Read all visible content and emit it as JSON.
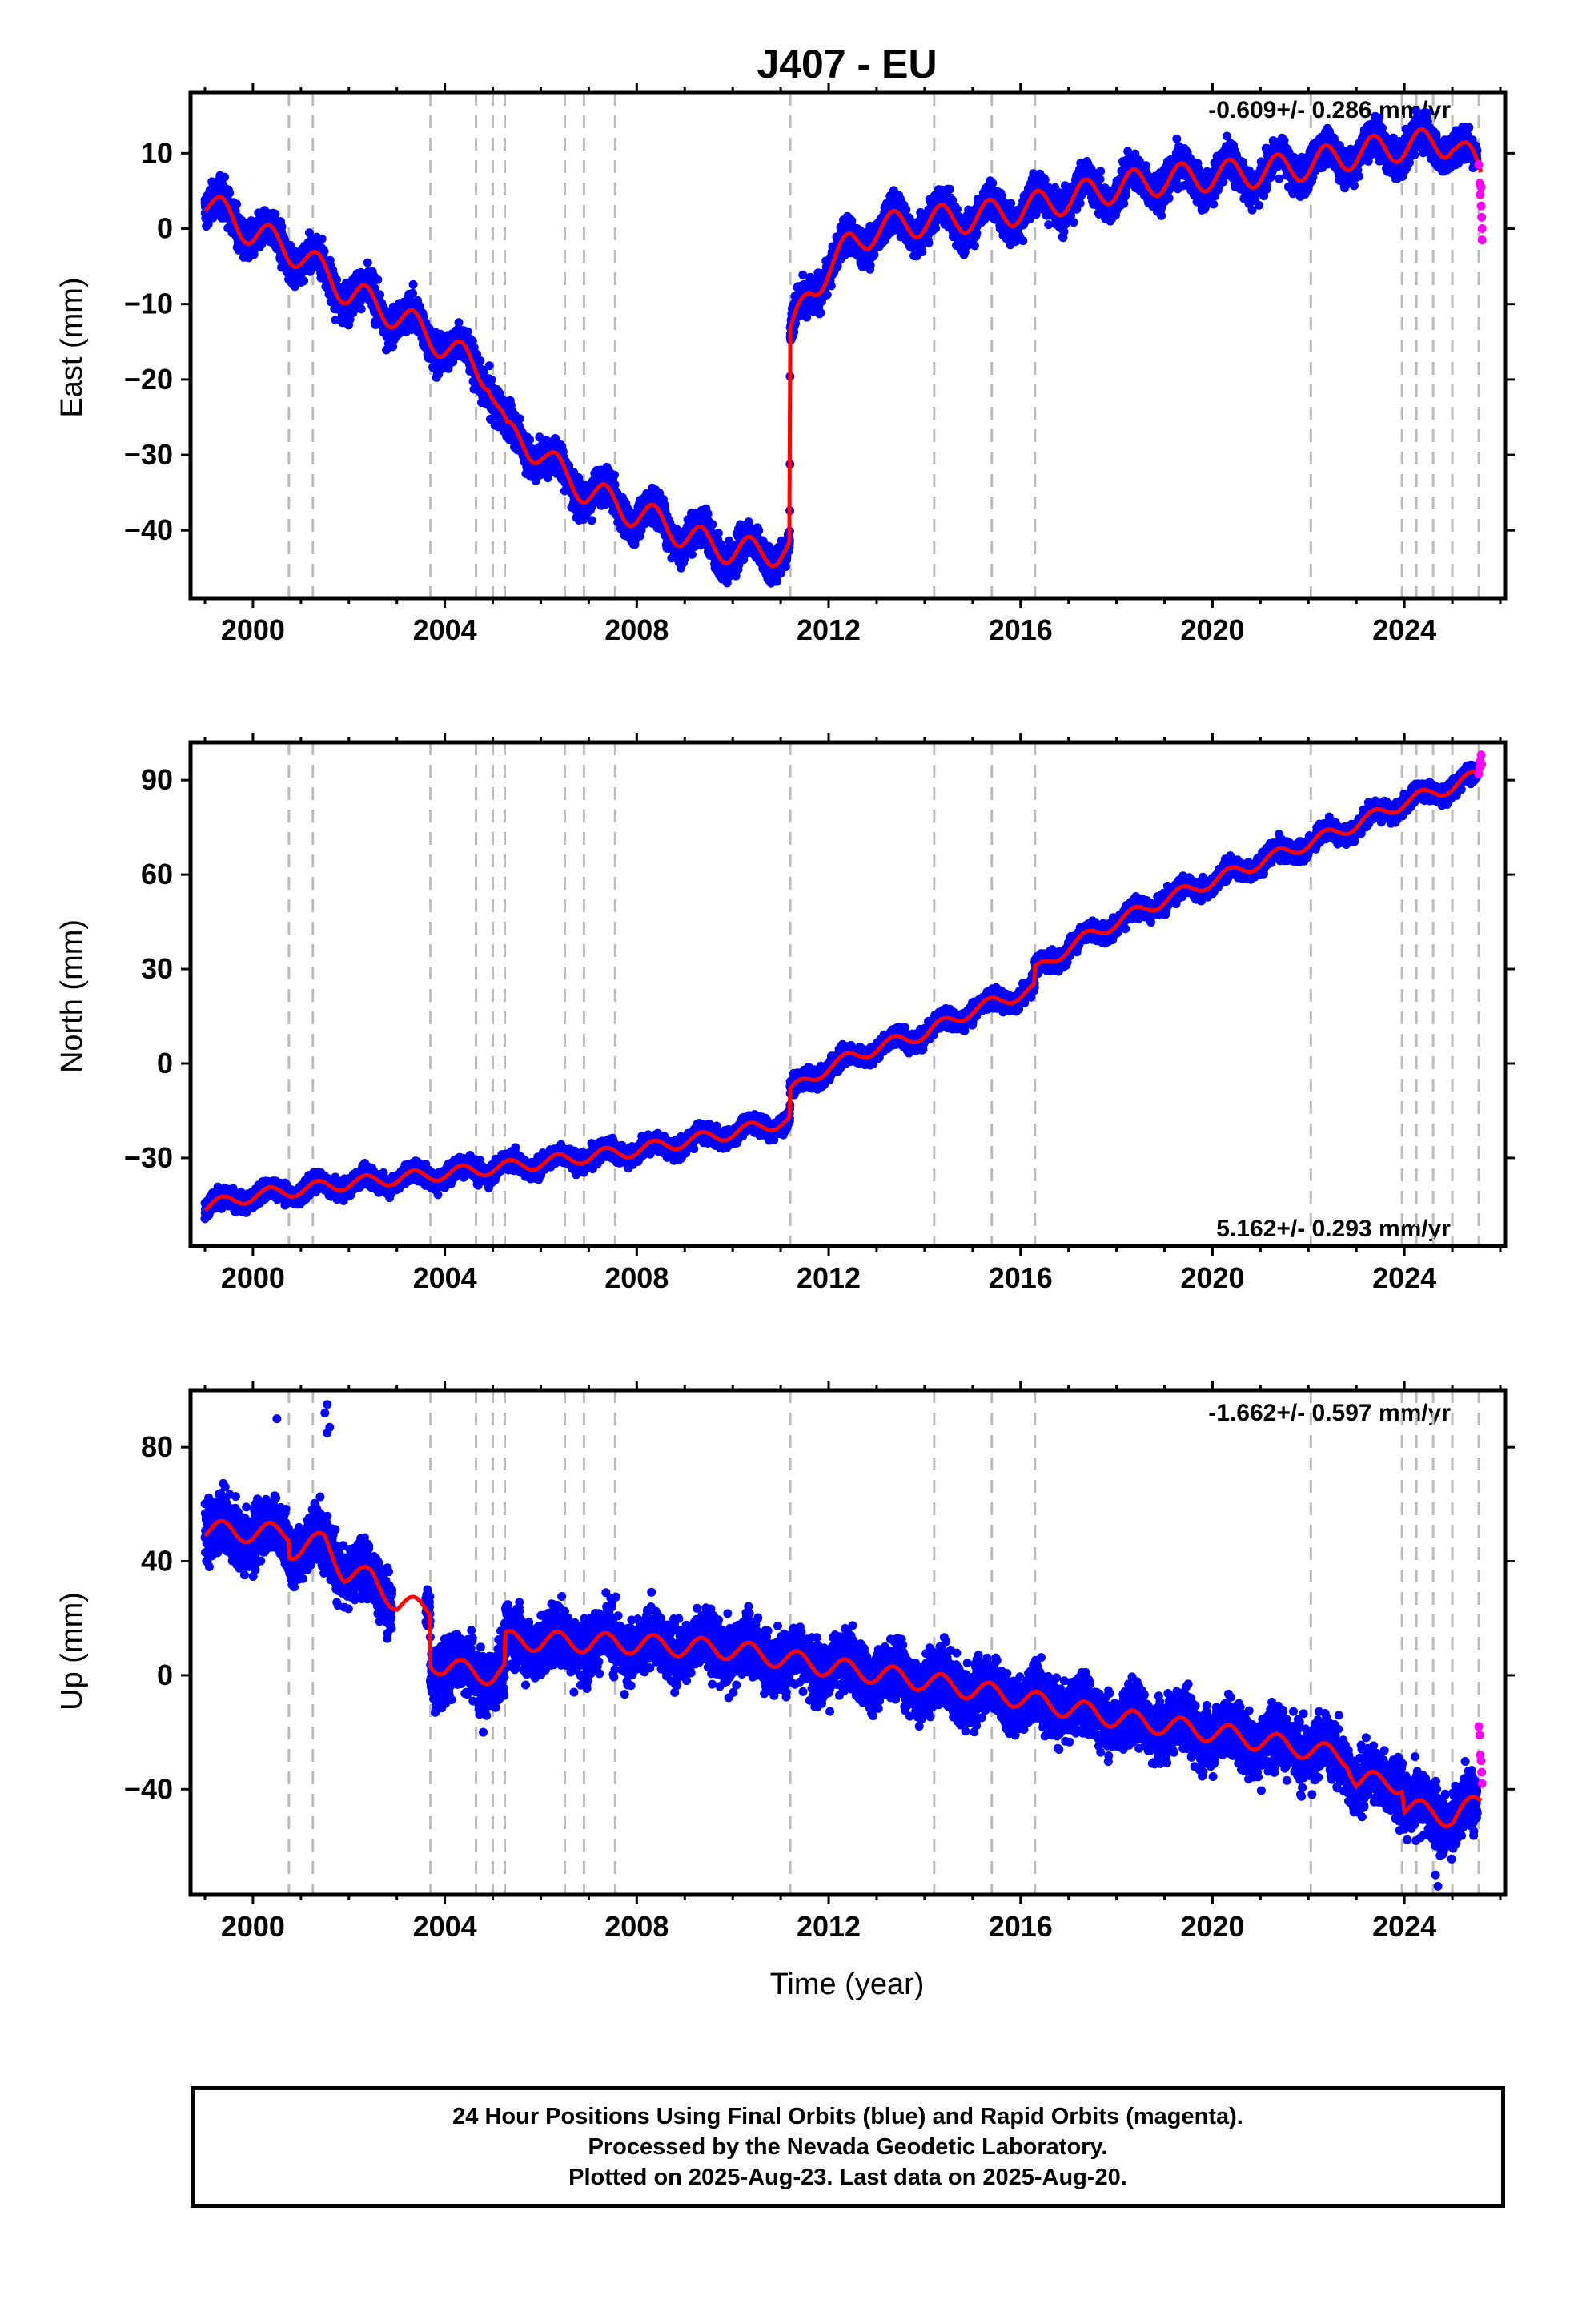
{
  "title": "J407 - EU",
  "xlabel": "Time (year)",
  "footer": {
    "line1": "24 Hour Positions Using Final Orbits (blue) and Rapid Orbits (magenta).",
    "line2": "Processed by the Nevada Geodetic Laboratory.",
    "line3": "Plotted on 2025-Aug-23. Last data on 2025-Aug-20."
  },
  "colors": {
    "final": "#0000ff",
    "rapid": "#ff00ff",
    "model": "#ff0000",
    "event": "#bbbbbb"
  },
  "chart_data": [
    {
      "type": "scatter",
      "component": "east",
      "ylabel": "East (mm)",
      "rate_text": "-0.609+/- 0.286 mm/yr",
      "rate_position": "top-right",
      "xlim": [
        1998.7,
        2026.1
      ],
      "ylim": [
        -49,
        18
      ],
      "x_ticks": [
        2000,
        2004,
        2008,
        2012,
        2016,
        2020,
        2024
      ],
      "y_ticks": [
        10,
        0,
        -10,
        -20,
        -30,
        -40
      ],
      "event_lines": [
        2000.75,
        2001.25,
        2003.7,
        2004.65,
        2005.0,
        2005.25,
        2006.5,
        2006.9,
        2007.55,
        2011.2,
        2014.2,
        2015.4,
        2016.3,
        2022.05,
        2023.95,
        2024.25,
        2024.6,
        2025.0,
        2025.55
      ],
      "model_trend": [
        [
          1999.0,
          3.5
        ],
        [
          2000.0,
          -0.5
        ],
        [
          2001.0,
          -3.5
        ],
        [
          2002.0,
          -8.5
        ],
        [
          2003.0,
          -11.5
        ],
        [
          2004.0,
          -15.5
        ],
        [
          2004.9,
          -19.5
        ],
        [
          2005.3,
          -27.5
        ],
        [
          2006.0,
          -29.5
        ],
        [
          2006.5,
          -33.0
        ],
        [
          2007.5,
          -36.5
        ],
        [
          2008.5,
          -39.0
        ],
        [
          2009.5,
          -42.0
        ],
        [
          2010.5,
          -43.0
        ],
        [
          2011.19,
          -42.5
        ],
        [
          2011.2,
          -14.5
        ],
        [
          2011.6,
          -8.5
        ],
        [
          2012.0,
          -5.0
        ],
        [
          2012.5,
          -2.0
        ],
        [
          2013.0,
          0.0
        ],
        [
          2014.0,
          1.0
        ],
        [
          2015.0,
          1.5
        ],
        [
          2016.0,
          2.5
        ],
        [
          2017.0,
          4.0
        ],
        [
          2018.0,
          5.5
        ],
        [
          2019.0,
          6.5
        ],
        [
          2020.0,
          7.0
        ],
        [
          2021.0,
          7.5
        ],
        [
          2022.0,
          8.5
        ],
        [
          2023.0,
          10.0
        ],
        [
          2024.0,
          11.0
        ],
        [
          2025.0,
          11.5
        ],
        [
          2025.6,
          7.5
        ]
      ],
      "seasonal_amplitude": 2.0,
      "scatter_sd": 1.6,
      "rapid_points": [
        [
          2025.55,
          8.5
        ],
        [
          2025.57,
          6.0
        ],
        [
          2025.58,
          4.5
        ],
        [
          2025.6,
          3.0
        ],
        [
          2025.61,
          1.5
        ],
        [
          2025.62,
          0.0
        ],
        [
          2025.6,
          5.5
        ],
        [
          2025.62,
          -1.5
        ]
      ]
    },
    {
      "type": "scatter",
      "component": "north",
      "ylabel": "North (mm)",
      "rate_text": "5.162+/- 0.293 mm/yr",
      "rate_position": "bottom-right",
      "xlim": [
        1998.7,
        2026.1
      ],
      "ylim": [
        -58,
        102
      ],
      "x_ticks": [
        2000,
        2004,
        2008,
        2012,
        2016,
        2020,
        2024
      ],
      "y_ticks": [
        90,
        60,
        30,
        0,
        -30
      ],
      "event_lines": [
        2000.75,
        2001.25,
        2003.7,
        2004.65,
        2005.0,
        2005.25,
        2006.5,
        2006.9,
        2007.55,
        2011.2,
        2014.2,
        2015.4,
        2016.3,
        2022.05,
        2023.95,
        2024.25,
        2024.6,
        2025.0,
        2025.55
      ],
      "model_trend": [
        [
          1999.0,
          -45.5
        ],
        [
          2000.0,
          -42.0
        ],
        [
          2002.0,
          -38.0
        ],
        [
          2004.0,
          -35.0
        ],
        [
          2006.0,
          -31.5
        ],
        [
          2008.0,
          -27.5
        ],
        [
          2010.0,
          -22.0
        ],
        [
          2011.19,
          -18.0
        ],
        [
          2011.2,
          -9.0
        ],
        [
          2012.0,
          -1.0
        ],
        [
          2013.0,
          5.0
        ],
        [
          2014.0,
          9.5
        ],
        [
          2015.0,
          17.0
        ],
        [
          2016.29,
          23.5
        ],
        [
          2016.3,
          29.0
        ],
        [
          2017.0,
          37.0
        ],
        [
          2018.0,
          45.0
        ],
        [
          2019.0,
          52.0
        ],
        [
          2020.0,
          58.0
        ],
        [
          2021.0,
          64.0
        ],
        [
          2022.0,
          70.0
        ],
        [
          2023.0,
          76.0
        ],
        [
          2024.0,
          83.0
        ],
        [
          2025.0,
          88.0
        ],
        [
          2025.6,
          92.0
        ]
      ],
      "seasonal_amplitude": 2.0,
      "scatter_sd": 2.0,
      "rapid_points": [
        [
          2025.55,
          92.0
        ],
        [
          2025.57,
          94.0
        ],
        [
          2025.58,
          96.0
        ],
        [
          2025.6,
          98.0
        ],
        [
          2025.61,
          95.0
        ]
      ]
    },
    {
      "type": "scatter",
      "component": "up",
      "ylabel": "Up (mm)",
      "rate_text": "-1.662+/- 0.597 mm/yr",
      "rate_position": "top-right",
      "xlim": [
        1998.7,
        2026.1
      ],
      "ylim": [
        -77,
        100
      ],
      "x_ticks": [
        2000,
        2004,
        2008,
        2012,
        2016,
        2020,
        2024
      ],
      "y_ticks": [
        80,
        40,
        0,
        -40
      ],
      "event_lines": [
        2000.75,
        2001.25,
        2003.7,
        2004.65,
        2005.0,
        2005.25,
        2006.5,
        2006.9,
        2007.55,
        2011.2,
        2014.2,
        2015.4,
        2016.3,
        2022.05,
        2023.95,
        2024.25,
        2024.6,
        2025.0,
        2025.55
      ],
      "model_trend": [
        [
          1999.0,
          51.0
        ],
        [
          2000.0,
          50.0
        ],
        [
          2000.74,
          50.0
        ],
        [
          2000.75,
          44.0
        ],
        [
          2001.5,
          47.0
        ],
        [
          2001.9,
          36.0
        ],
        [
          2002.5,
          34.0
        ],
        [
          2003.0,
          25.0
        ],
        [
          2003.69,
          23.0
        ],
        [
          2003.7,
          5.0
        ],
        [
          2004.0,
          3.0
        ],
        [
          2005.0,
          0.0
        ],
        [
          2005.24,
          1.0
        ],
        [
          2005.25,
          12.0
        ],
        [
          2006.0,
          12.0
        ],
        [
          2008.0,
          11.0
        ],
        [
          2010.0,
          9.0
        ],
        [
          2012.0,
          3.0
        ],
        [
          2014.0,
          -2.0
        ],
        [
          2016.0,
          -8.0
        ],
        [
          2018.0,
          -15.0
        ],
        [
          2020.0,
          -20.0
        ],
        [
          2022.0,
          -26.0
        ],
        [
          2022.8,
          -29.0
        ],
        [
          2023.0,
          -37.0
        ],
        [
          2023.95,
          -38.0
        ],
        [
          2024.0,
          -46.0
        ],
        [
          2025.0,
          -50.0
        ],
        [
          2025.6,
          -44.0
        ]
      ],
      "seasonal_amplitude": 3.5,
      "scatter_sd": 7.0,
      "gap": [
        2002.9,
        2003.6
      ],
      "outliers": [
        [
          2001.55,
          95.0
        ],
        [
          2001.5,
          92.0
        ],
        [
          2000.5,
          90.0
        ],
        [
          2001.6,
          87.0
        ],
        [
          2001.55,
          85.0
        ],
        [
          2003.8,
          -13.0
        ],
        [
          2004.8,
          -20.0
        ],
        [
          2024.7,
          -74.0
        ],
        [
          2024.65,
          -70.0
        ]
      ],
      "rapid_points": [
        [
          2025.55,
          -18.0
        ],
        [
          2025.57,
          -21.0
        ],
        [
          2025.58,
          -28.0
        ],
        [
          2025.6,
          -30.0
        ],
        [
          2025.61,
          -34.0
        ],
        [
          2025.62,
          -38.0
        ]
      ]
    }
  ]
}
